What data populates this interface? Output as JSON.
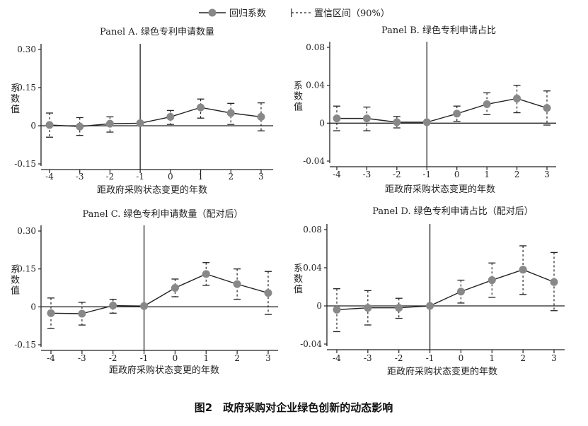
{
  "legend": {
    "series_label": "回归系数",
    "ci_label": "置信区间（90%）"
  },
  "figure_caption": "图2　政府采购对企业绿色创新的动态影响",
  "colors": {
    "marker": "#888888",
    "line": "#222222",
    "axis": "#222222"
  },
  "chart_data": [
    {
      "type": "line",
      "title": "Panel A. 绿色专利申请数量",
      "xlabel": "距政府采购状态变更的年数",
      "ylabel": "系数值",
      "x": [
        -4,
        -3,
        -2,
        -1,
        0,
        1,
        2,
        3
      ],
      "xticks": [
        "-4",
        "-3",
        "-2",
        "-1",
        "0",
        "1",
        "2",
        "3"
      ],
      "ylim": [
        -0.15,
        0.3
      ],
      "yticks": [
        "-0.15",
        "0",
        "0.15",
        "0.30"
      ],
      "ytick_values": [
        -0.15,
        0,
        0.15,
        0.3
      ],
      "series": [
        {
          "values": [
            0.003,
            -0.003,
            0.008,
            0.01,
            0.035,
            0.072,
            0.05,
            0.035
          ],
          "ci_lower": [
            -0.045,
            -0.038,
            -0.025,
            0.01,
            0.005,
            0.03,
            0.005,
            -0.02
          ],
          "ci_upper": [
            0.05,
            0.032,
            0.035,
            0.01,
            0.06,
            0.105,
            0.088,
            0.09
          ]
        }
      ]
    },
    {
      "type": "line",
      "title": "Panel B. 绿色专利申请占比",
      "xlabel": "距政府采购状态变更的年数",
      "ylabel": "系数值",
      "x": [
        -4,
        -3,
        -2,
        -1,
        0,
        1,
        2,
        3
      ],
      "xticks": [
        "-4",
        "-3",
        "-2",
        "-1",
        "0",
        "1",
        "2",
        "3"
      ],
      "ylim": [
        -0.04,
        0.08
      ],
      "yticks": [
        "-0.04",
        "0",
        "0.04",
        "0.08"
      ],
      "ytick_values": [
        -0.04,
        0,
        0.04,
        0.08
      ],
      "series": [
        {
          "values": [
            0.005,
            0.005,
            0.001,
            0.001,
            0.01,
            0.02,
            0.026,
            0.016
          ],
          "ci_lower": [
            -0.008,
            -0.008,
            -0.005,
            0.001,
            0.002,
            0.009,
            0.011,
            -0.002
          ],
          "ci_upper": [
            0.018,
            0.017,
            0.007,
            0.001,
            0.018,
            0.032,
            0.04,
            0.034
          ]
        }
      ]
    },
    {
      "type": "line",
      "title": "Panel C. 绿色专利申请数量（配对后）",
      "xlabel": "距政府采购状态变更的年数",
      "ylabel": "系数值",
      "x": [
        -4,
        -3,
        -2,
        -1,
        0,
        1,
        2,
        3
      ],
      "xticks": [
        "-4",
        "-3",
        "-2",
        "-1",
        "0",
        "1",
        "2",
        "3"
      ],
      "ylim": [
        -0.15,
        0.3
      ],
      "yticks": [
        "-0.15",
        "0",
        "0.15",
        "0.30"
      ],
      "ytick_values": [
        -0.15,
        0,
        0.15,
        0.3
      ],
      "series": [
        {
          "values": [
            -0.025,
            -0.027,
            0.005,
            0.003,
            0.075,
            0.13,
            0.09,
            0.055
          ],
          "ci_lower": [
            -0.085,
            -0.072,
            -0.025,
            0.003,
            0.04,
            0.085,
            0.03,
            -0.03
          ],
          "ci_upper": [
            0.035,
            0.018,
            0.03,
            0.003,
            0.11,
            0.175,
            0.15,
            0.14
          ]
        }
      ]
    },
    {
      "type": "line",
      "title": "Panel D. 绿色专利申请占比（配对后）",
      "xlabel": "距政府采购状态变更的年数",
      "ylabel": "系数值",
      "x": [
        -4,
        -3,
        -2,
        -1,
        0,
        1,
        2,
        3
      ],
      "xticks": [
        "-4",
        "-3",
        "-2",
        "-1",
        "0",
        "1",
        "2",
        "3"
      ],
      "ylim": [
        -0.04,
        0.08
      ],
      "yticks": [
        "-0.04",
        "0",
        "0.04",
        "0.08"
      ],
      "ytick_values": [
        -0.04,
        0,
        0.04,
        0.08
      ],
      "series": [
        {
          "values": [
            -0.004,
            -0.002,
            -0.002,
            0.0,
            0.015,
            0.027,
            0.038,
            0.025
          ],
          "ci_lower": [
            -0.027,
            -0.02,
            -0.013,
            0.0,
            0.003,
            0.009,
            0.012,
            -0.005
          ],
          "ci_upper": [
            0.018,
            0.016,
            0.008,
            0.0,
            0.027,
            0.045,
            0.063,
            0.056
          ]
        }
      ]
    }
  ]
}
